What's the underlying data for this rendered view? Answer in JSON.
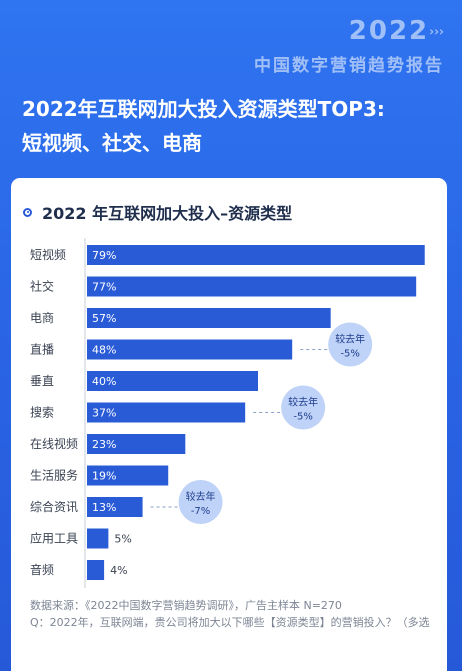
{
  "brand": {
    "year": "2022",
    "chevrons": "›››",
    "subtitle": "中国数字营销趋势报告"
  },
  "headline": {
    "line1": "2022年互联网加大投入资源类型TOP3:",
    "line2": "短视频、社交、电商"
  },
  "card": {
    "title": "2022 年互联网加大投入–资源类型"
  },
  "chart_data": {
    "type": "bar",
    "orientation": "horizontal",
    "title": "2022 年互联网加大投入–资源类型",
    "categories": [
      "短视频",
      "社交",
      "电商",
      "直播",
      "垂直",
      "搜索",
      "在线视频",
      "生活服务",
      "综合资讯",
      "应用工具",
      "音频"
    ],
    "values": [
      79,
      77,
      57,
      48,
      40,
      37,
      23,
      19,
      13,
      5,
      4
    ],
    "value_labels": [
      "79%",
      "77%",
      "57%",
      "48%",
      "40%",
      "37%",
      "23%",
      "19%",
      "13%",
      "5%",
      "4%"
    ],
    "xlim": [
      0,
      80
    ],
    "unit": "%",
    "bar_color": "#2a5bd7",
    "annotations": [
      {
        "category": "直播",
        "text_line1": "较去年",
        "text_line2": "-5%"
      },
      {
        "category": "搜索",
        "text_line1": "较去年",
        "text_line2": "-5%"
      },
      {
        "category": "综合资讯",
        "text_line1": "较去年",
        "text_line2": "-7%"
      }
    ]
  },
  "notes": {
    "source": "数据来源：《2022中国数字营销趋势调研》，广告主样本 N=270",
    "question": "Q：2022年，互联网端，贵公司将加大以下哪些【资源类型】的营销投入？（多选"
  }
}
